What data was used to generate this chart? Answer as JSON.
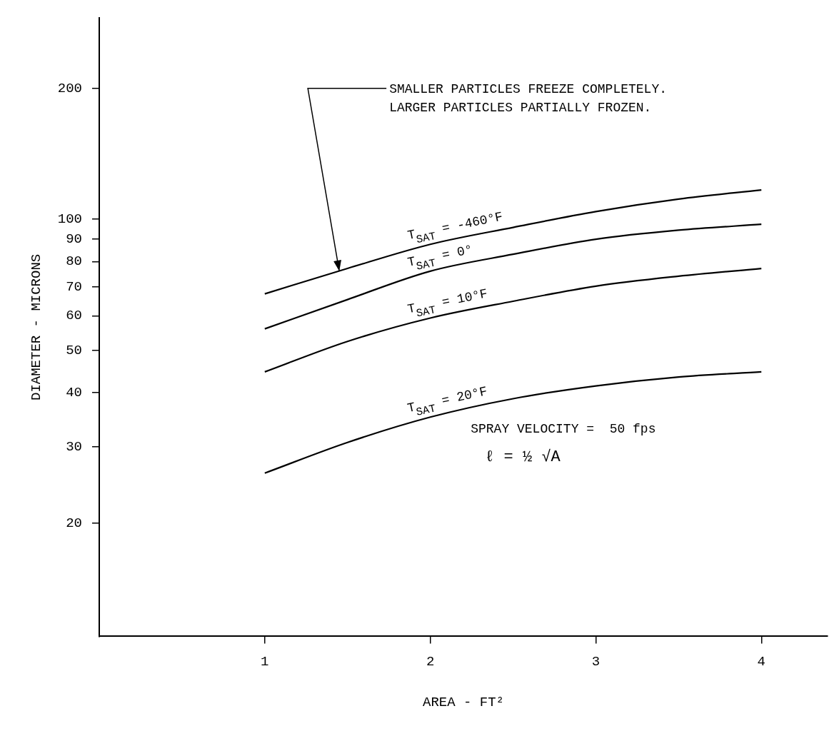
{
  "chart_data": {
    "type": "line",
    "xlabel": "AREA - FT²",
    "ylabel": "DIAMETER - MICRONS",
    "x": [
      1,
      1.5,
      2,
      2.5,
      3,
      3.5,
      4
    ],
    "series": [
      {
        "name": "T$_{SAT}$ = -460°F",
        "color": "#000000",
        "values": [
          67.4,
          77.1,
          87.6,
          95.8,
          104.2,
          111.3,
          116.8
        ]
      },
      {
        "name": "T$_{SAT}$ = 0°",
        "color": "#000000",
        "values": [
          56.0,
          65.4,
          76.0,
          83.1,
          90.0,
          94.4,
          97.4
        ]
      },
      {
        "name": "T$_{SAT}$ = 10°F",
        "color": "#000000",
        "values": [
          44.6,
          52.4,
          59.3,
          64.8,
          70.2,
          74.0,
          77.1
        ]
      },
      {
        "name": "T$_{SAT}$ = 20°F",
        "color": "#000000",
        "values": [
          26.1,
          30.7,
          35.1,
          38.7,
          41.4,
          43.4,
          44.6
        ]
      }
    ],
    "xlim": [
      0,
      4.4
    ],
    "xticks": [
      1,
      2,
      3,
      4
    ],
    "ylim": [
      11,
      290
    ],
    "yticks": [
      20,
      30,
      40,
      50,
      60,
      70,
      80,
      90,
      100,
      200
    ],
    "log": "y",
    "grid": false,
    "legend": false,
    "marker": "none",
    "line_style": "solid",
    "annotations": [
      {
        "text": "SMALLER PARTICLES FREEZE COMPLETELY.\nLARGER PARTICLES PARTIALLY FROZEN.",
        "x": 1.45,
        "y": 76
      },
      "SPRAY VELOCITY =  50 fps",
      "ℓ = ½ √A"
    ]
  }
}
